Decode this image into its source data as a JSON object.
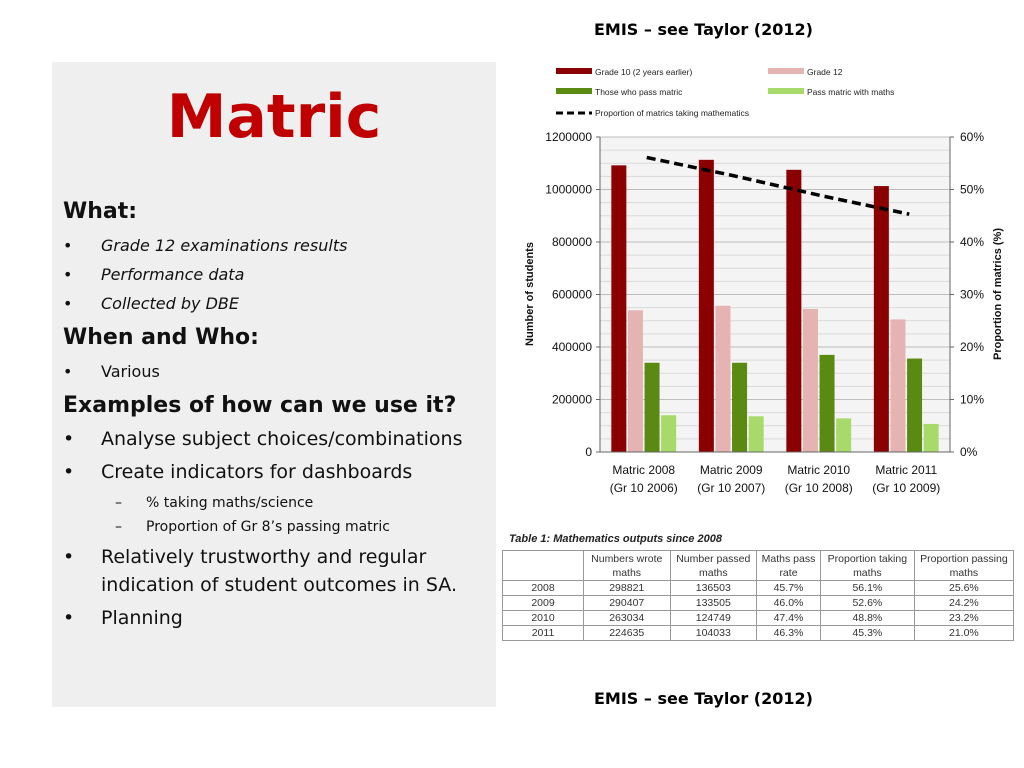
{
  "source_top": "EMIS – see Taylor (2012)",
  "source_bottom": "EMIS – see Taylor (2012)",
  "left": {
    "title": "Matric",
    "what_heading": "What:",
    "what_items": [
      "Grade 12 examinations results",
      "Performance data",
      "Collected by DBE"
    ],
    "who_heading": "When and Who:",
    "who_items": [
      "Various"
    ],
    "examples_heading": "Examples of how can we use it?",
    "examples_items": [
      "Analyse subject choices/combinations",
      "Create indicators for dashboards"
    ],
    "sub_items": [
      "% taking maths/science",
      "Proportion of Gr 8’s passing matric"
    ],
    "more_items": [
      "Relatively trustworthy and regular indication of student outcomes in SA.",
      "Planning"
    ]
  },
  "chart_data": {
    "type": "bar",
    "categories": [
      [
        "Matric 2008",
        "(Gr 10 2006)"
      ],
      [
        "Matric 2009",
        "(Gr 10 2007)"
      ],
      [
        "Matric 2010",
        "(Gr 10 2008)"
      ],
      [
        "Matric 2011",
        "(Gr 10 2009)"
      ]
    ],
    "series": [
      {
        "name": "Grade 10 (2 years earlier)",
        "color": "#8b0000",
        "values": [
          1092000,
          1113000,
          1075000,
          1013000
        ]
      },
      {
        "name": "Grade 12",
        "color": "#e6b3b3",
        "values": [
          540000,
          557000,
          545000,
          505000
        ]
      },
      {
        "name": "Those who pass matric",
        "color": "#5a8a12",
        "values": [
          340000,
          340000,
          370000,
          356000
        ]
      },
      {
        "name": "Pass matric with maths",
        "color": "#a7d96b",
        "values": [
          140000,
          136000,
          128000,
          107000
        ]
      }
    ],
    "line": {
      "name": "Proportion of matrics taking mathematics",
      "values": [
        0.561,
        0.526,
        0.488,
        0.453
      ]
    },
    "ylabel": "Number of students",
    "y2label": "Proportion of matrics (%)",
    "ylim": [
      0,
      1200000
    ],
    "y2lim": [
      0,
      0.6
    ],
    "yticks": [
      "0",
      "200000",
      "400000",
      "600000",
      "800000",
      "1000000",
      "1200000"
    ],
    "y2ticks": [
      "0%",
      "10%",
      "20%",
      "30%",
      "40%",
      "50%",
      "60%"
    ],
    "grid": true,
    "legend_position": "top"
  },
  "table": {
    "caption": "Table 1:  Mathematics outputs since 2008",
    "headers": [
      "",
      "Numbers wrote maths",
      "Number passed maths",
      "Maths pass rate",
      "Proportion taking maths",
      "Proportion passing maths"
    ],
    "rows": [
      [
        "2008",
        "298821",
        "136503",
        "45.7%",
        "56.1%",
        "25.6%"
      ],
      [
        "2009",
        "290407",
        "133505",
        "46.0%",
        "52.6%",
        "24.2%"
      ],
      [
        "2010",
        "263034",
        "124749",
        "47.4%",
        "48.8%",
        "23.2%"
      ],
      [
        "2011",
        "224635",
        "104033",
        "46.3%",
        "45.3%",
        "21.0%"
      ]
    ]
  }
}
